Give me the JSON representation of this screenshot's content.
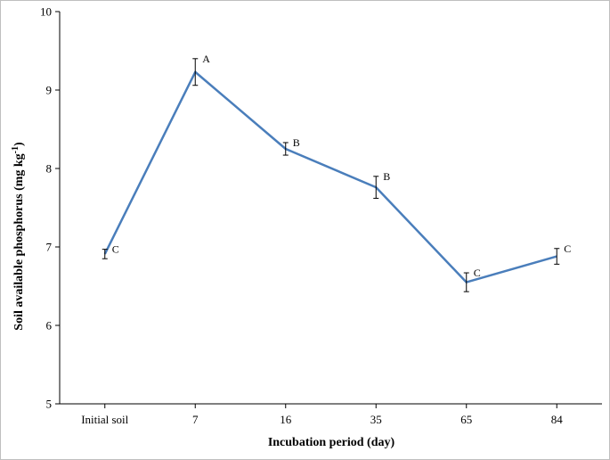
{
  "chart_data": {
    "type": "line",
    "categories": [
      "Initial soil",
      "7",
      "16",
      "35",
      "65",
      "84"
    ],
    "series": [
      {
        "values": [
          6.91,
          9.23,
          8.25,
          7.76,
          6.55,
          6.88
        ],
        "errors": [
          0.06,
          0.17,
          0.08,
          0.14,
          0.12,
          0.1
        ],
        "labels": [
          "C",
          "A",
          "B",
          "B",
          "C",
          "C"
        ],
        "color": "#4a7ebb"
      }
    ],
    "xlabel": "Incubation period (day)",
    "ylabel": "Soil available phosphorus (mg kg",
    "ylabel_sup": "-1",
    "ylabel_close": ")",
    "ylim": [
      5,
      10
    ],
    "yticks": [
      5,
      6,
      7,
      8,
      9,
      10
    ],
    "grid": false,
    "legend": "none"
  }
}
